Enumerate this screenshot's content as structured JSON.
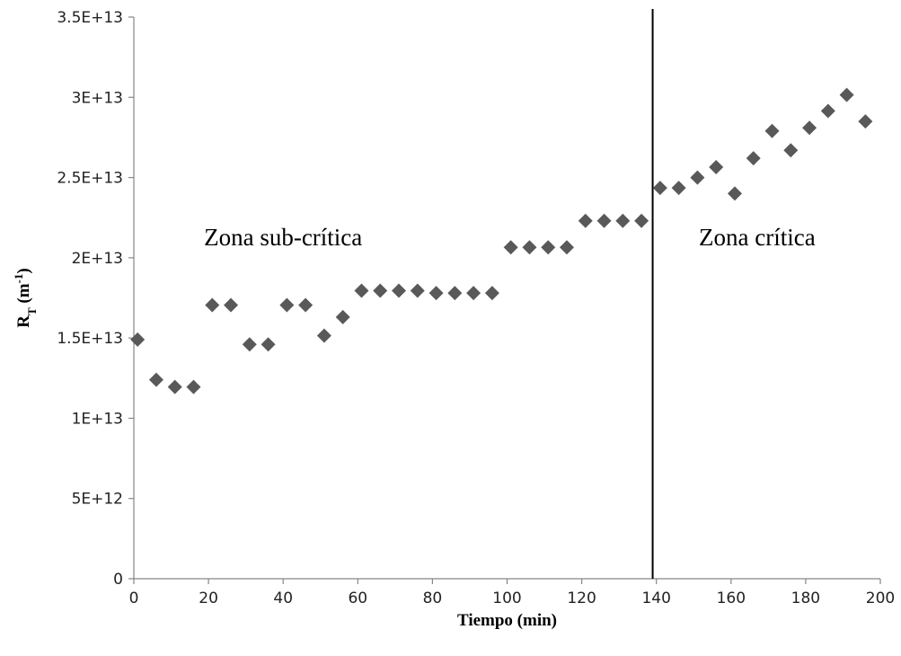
{
  "chart_data": {
    "type": "scatter",
    "title": "",
    "xlabel": "Tiempo (min)",
    "ylabel": {
      "main": "R",
      "sub": "T",
      "unit_open": " (m",
      "unit_sup": "-1",
      "unit_close": ")"
    },
    "xlim": [
      0,
      200
    ],
    "ylim": [
      0,
      35000000000000
    ],
    "x_ticks": [
      0,
      20,
      40,
      60,
      80,
      100,
      120,
      140,
      160,
      180,
      200
    ],
    "x_tick_labels": [
      "0",
      "20",
      "40",
      "60",
      "80",
      "100",
      "120",
      "140",
      "160",
      "180",
      "200"
    ],
    "y_ticks": [
      0,
      5000000000000,
      10000000000000,
      15000000000000,
      20000000000000,
      25000000000000,
      30000000000000,
      35000000000000
    ],
    "y_tick_labels": [
      "0",
      "5E+12",
      "1E+13",
      "1.5E+13",
      "2E+13",
      "2.5E+13",
      "3E+13",
      "3.5E+13"
    ],
    "grid": false,
    "legend": "none",
    "marker": "diamond",
    "marker_color": "#595959",
    "series": [
      {
        "x": [
          1,
          6,
          11,
          16,
          21,
          26,
          31,
          36,
          41,
          46,
          51,
          56,
          61,
          66,
          71,
          76,
          81,
          86,
          91,
          96,
          101,
          106,
          111,
          116,
          121,
          126,
          131,
          136,
          141,
          146,
          151,
          156,
          161,
          166,
          171,
          176,
          181,
          186,
          191,
          196
        ],
        "y": [
          14900000000000,
          12400000000000,
          11950000000000,
          11950000000000,
          17050000000000,
          17050000000000,
          14600000000000,
          14600000000000,
          17050000000000,
          17050000000000,
          15150000000000,
          16300000000000,
          17950000000000,
          17950000000000,
          17950000000000,
          17950000000000,
          17800000000000,
          17800000000000,
          17800000000000,
          17800000000000,
          20650000000000,
          20650000000000,
          20650000000000,
          20650000000000,
          22300000000000,
          22300000000000,
          22300000000000,
          22300000000000,
          24350000000000,
          24350000000000,
          25000000000000,
          25650000000000,
          24000000000000,
          26200000000000,
          27900000000000,
          26700000000000,
          28100000000000,
          29150000000000,
          30150000000000,
          28500000000000
        ]
      }
    ],
    "vertical_line": {
      "x": 139
    },
    "annotations": [
      {
        "text": "Zona sub-crítica",
        "x": 40,
        "y": 21000000000000
      },
      {
        "text": "Zona crítica",
        "x": 167,
        "y": 21000000000000
      }
    ]
  }
}
